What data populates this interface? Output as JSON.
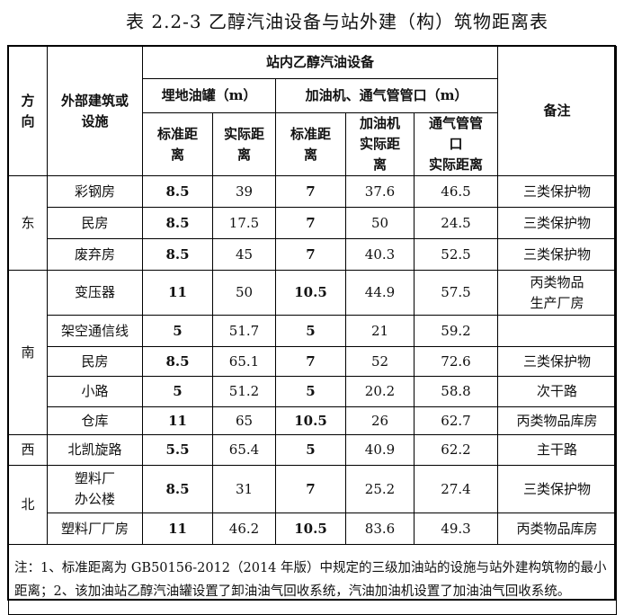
{
  "title": "表 2.2-3 乙醇汽油设备与站外建（构）筑物距离表",
  "header": {
    "direction": "方\n向",
    "facility": "外部建筑或\n设施",
    "group": "站内乙醇汽油设备",
    "tank": "埋地油罐（m）",
    "dispenser": "加油机、通气管管口（m）",
    "tank_std": "标准距\n离",
    "tank_actual": "实际距\n离",
    "disp_std": "标准距\n离",
    "disp_actual": "加油机\n实际距\n离",
    "vent_actual": "通气管管\n口\n实际距离",
    "remark": "备注"
  },
  "groups": [
    {
      "direction": "东",
      "rows": [
        {
          "facility": "彩钢房",
          "tank_std": "8.5",
          "tank_actual": "39",
          "disp_std": "7",
          "disp_actual": "37.6",
          "vent_actual": "46.5",
          "remark": "三类保护物"
        },
        {
          "facility": "民房",
          "tank_std": "8.5",
          "tank_actual": "17.5",
          "disp_std": "7",
          "disp_actual": "50",
          "vent_actual": "24.5",
          "remark": "三类保护物"
        },
        {
          "facility": "废弃房",
          "tank_std": "8.5",
          "tank_actual": "45",
          "disp_std": "7",
          "disp_actual": "40.3",
          "vent_actual": "52.5",
          "remark": "三类保护物"
        }
      ]
    },
    {
      "direction": "南",
      "rows": [
        {
          "facility": "变压器",
          "tank_std": "11",
          "tank_actual": "50",
          "disp_std": "10.5",
          "disp_actual": "44.9",
          "vent_actual": "57.5",
          "remark": "丙类物品\n生产厂房"
        },
        {
          "facility": "架空通信线",
          "tank_std": "5",
          "tank_actual": "51.7",
          "disp_std": "5",
          "disp_actual": "21",
          "vent_actual": "59.2",
          "remark": ""
        },
        {
          "facility": "民房",
          "tank_std": "8.5",
          "tank_actual": "65.1",
          "disp_std": "7",
          "disp_actual": "52",
          "vent_actual": "72.6",
          "remark": "三类保护物"
        },
        {
          "facility": "小路",
          "tank_std": "5",
          "tank_actual": "51.2",
          "disp_std": "5",
          "disp_actual": "20.2",
          "vent_actual": "58.8",
          "remark": "次干路"
        },
        {
          "facility": "仓库",
          "tank_std": "11",
          "tank_actual": "65",
          "disp_std": "10.5",
          "disp_actual": "26",
          "vent_actual": "62.7",
          "remark": "丙类物品库房"
        }
      ]
    },
    {
      "direction": "西",
      "rows": [
        {
          "facility": "北凯旋路",
          "tank_std": "5.5",
          "tank_actual": "65.4",
          "disp_std": "5",
          "disp_actual": "40.9",
          "vent_actual": "62.2",
          "remark": "主干路"
        }
      ]
    },
    {
      "direction": "北",
      "rows": [
        {
          "facility": "塑料厂\n办公楼",
          "tank_std": "8.5",
          "tank_actual": "31",
          "disp_std": "7",
          "disp_actual": "25.2",
          "vent_actual": "27.4",
          "remark": "三类保护物"
        },
        {
          "facility": "塑料厂厂房",
          "tank_std": "11",
          "tank_actual": "46.2",
          "disp_std": "10.5",
          "disp_actual": "83.6",
          "vent_actual": "49.3",
          "remark": "丙类物品库房"
        }
      ]
    }
  ],
  "note": "注：1、标准距离为 GB50156-2012（2014 年版）中规定的三级加油站的设施与站外建构筑物的最小距离；2、该加油站乙醇汽油罐设置了卸油油气回收系统，汽油加油机设置了加油油气回收系统。"
}
